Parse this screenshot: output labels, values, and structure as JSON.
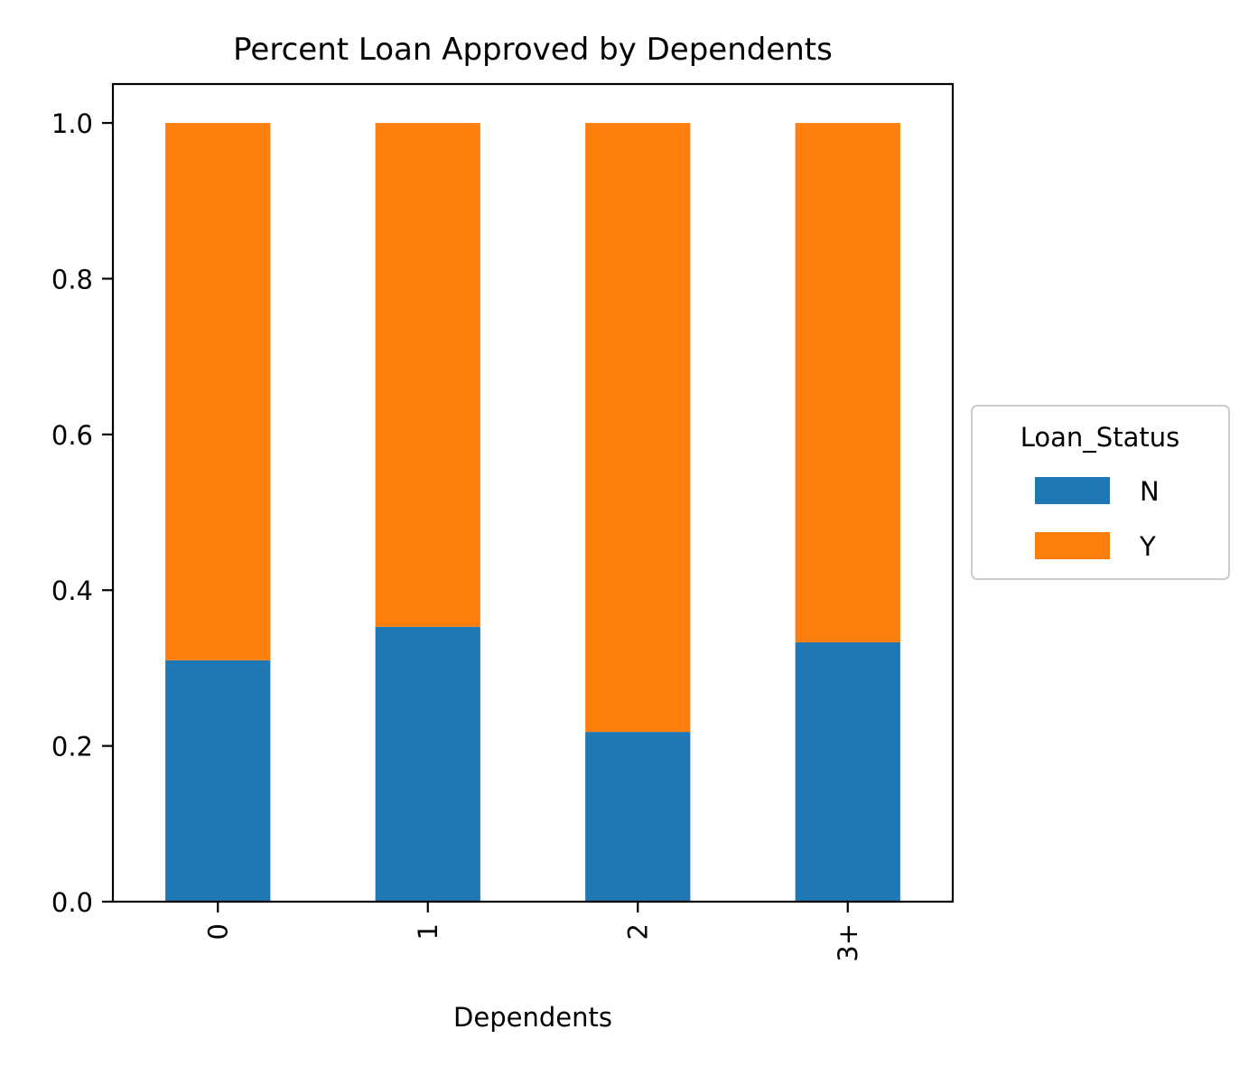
{
  "chart_data": {
    "type": "bar",
    "stacked": true,
    "title": "Percent Loan Approved by Dependents",
    "xlabel": "Dependents",
    "ylabel": "",
    "categories": [
      "0",
      "1",
      "2",
      "3+"
    ],
    "series": [
      {
        "name": "N",
        "color": "#1f77b4",
        "values": [
          0.31,
          0.353,
          0.218,
          0.333
        ]
      },
      {
        "name": "Y",
        "color": "#ff7f0e",
        "values": [
          0.69,
          0.647,
          0.782,
          0.667
        ]
      }
    ],
    "ylim": [
      0,
      1.05
    ],
    "yticks": [
      "0.0",
      "0.2",
      "0.4",
      "0.6",
      "0.8",
      "1.0"
    ],
    "grid": false,
    "legend": {
      "title": "Loan_Status",
      "placement": "center-right outside"
    }
  }
}
